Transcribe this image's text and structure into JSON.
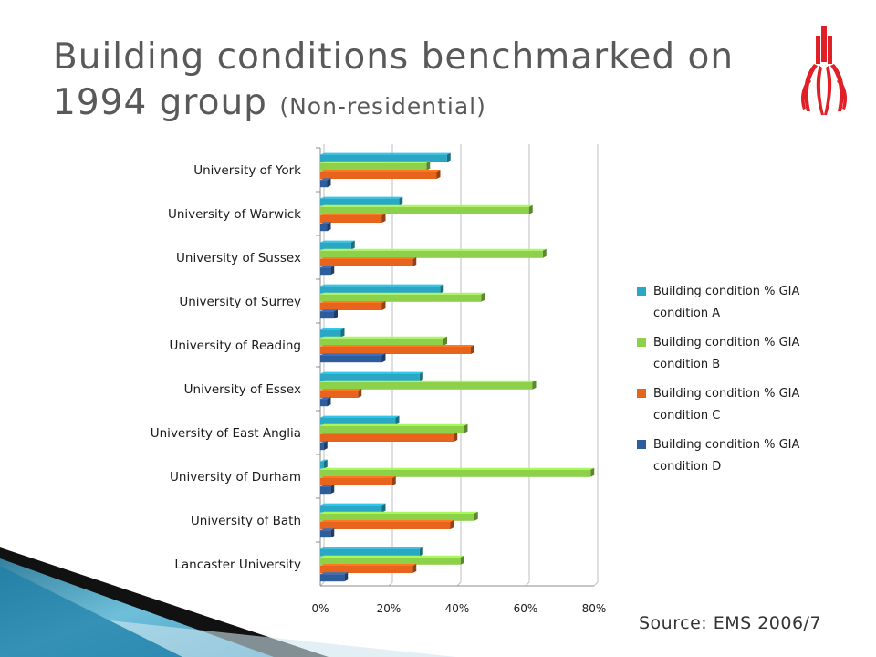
{
  "slide": {
    "title_line1": "Building conditions benchmarked on",
    "title_line2": "1994 group",
    "title_sub": "(Non-residential)",
    "source": "Source: EMS 2006/7"
  },
  "colors": {
    "condition_a": "#2aa7c4",
    "condition_b": "#8dd04a",
    "condition_c": "#e8641c",
    "condition_d": "#2e5d9e",
    "logo": "#e01f26"
  },
  "chart_data": {
    "type": "bar",
    "orientation": "horizontal",
    "categories": [
      "University of York",
      "University of Warwick",
      "University of Sussex",
      "University of Surrey",
      "University of Reading",
      "University of Essex",
      "University of East Anglia",
      "University of Durham",
      "University of Bath",
      "Lancaster University"
    ],
    "series": [
      {
        "name": "Building condition % GIA condition A",
        "values": [
          37,
          23,
          9,
          35,
          6,
          29,
          22,
          1,
          18,
          29
        ]
      },
      {
        "name": "Building condition % GIA condition B",
        "values": [
          31,
          61,
          65,
          47,
          36,
          62,
          42,
          79,
          45,
          41
        ]
      },
      {
        "name": "Building condition % GIA condition C",
        "values": [
          34,
          18,
          27,
          18,
          44,
          11,
          39,
          21,
          38,
          27
        ]
      },
      {
        "name": "Building condition % GIA condition D",
        "values": [
          2,
          2,
          3,
          4,
          18,
          2,
          1,
          3,
          3,
          7
        ]
      }
    ],
    "x_ticks": [
      "0%",
      "20%",
      "40%",
      "60%",
      "80%"
    ],
    "xlim": [
      0,
      80
    ],
    "grid": true,
    "legend_position": "right"
  }
}
